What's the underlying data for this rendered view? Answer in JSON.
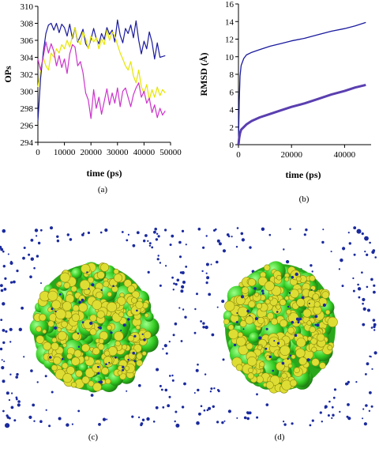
{
  "chart_data": [
    {
      "id": "a",
      "type": "line",
      "caption": "(a)",
      "xlabel": "time (ps)",
      "ylabel": "OPs",
      "xlim": [
        0,
        50000
      ],
      "ylim": [
        294,
        310
      ],
      "xticks": [
        0,
        10000,
        20000,
        30000,
        40000,
        50000
      ],
      "yticks": [
        294,
        296,
        298,
        300,
        302,
        304,
        306,
        308,
        310
      ],
      "grid": false,
      "series": [
        {
          "color": "#1a1a9e",
          "x": [
            0,
            1000,
            2000,
            3000,
            4000,
            5000,
            6000,
            7000,
            8000,
            9000,
            10000,
            11000,
            12000,
            13000,
            14000,
            15000,
            16000,
            17000,
            18000,
            19000,
            20000,
            21000,
            22000,
            23000,
            24000,
            25000,
            26000,
            27000,
            28000,
            29000,
            30000,
            31000,
            32000,
            33000,
            34000,
            35000,
            36000,
            37000,
            38000,
            39000,
            40000,
            41000,
            42000,
            43000,
            44000,
            45000,
            46000,
            47000,
            48000
          ],
          "y": [
            296.5,
            301.5,
            304.5,
            306.8,
            307.8,
            308.0,
            307.2,
            308.0,
            306.9,
            307.9,
            307.5,
            306.5,
            307.9,
            306.2,
            307.5,
            305.8,
            306.5,
            307.3,
            305.6,
            305.1,
            306.1,
            307.4,
            306.2,
            305.6,
            306.8,
            306.1,
            307.5,
            306.7,
            307.2,
            305.8,
            308.4,
            306.6,
            305.7,
            307.4,
            306.8,
            307.8,
            306.3,
            308.3,
            306.0,
            304.4,
            305.9,
            305.0,
            307.0,
            305.8,
            303.8,
            305.7,
            304.0,
            304.1,
            304.2
          ]
        },
        {
          "color": "#e6e600",
          "x": [
            0,
            1000,
            2000,
            3000,
            4000,
            5000,
            6000,
            7000,
            8000,
            9000,
            10000,
            11000,
            12000,
            13000,
            14000,
            15000,
            16000,
            17000,
            18000,
            19000,
            20000,
            21000,
            22000,
            23000,
            24000,
            25000,
            26000,
            27000,
            28000,
            29000,
            30000,
            31000,
            32000,
            33000,
            34000,
            35000,
            36000,
            37000,
            38000,
            39000,
            40000,
            41000,
            42000,
            43000,
            44000,
            45000,
            46000,
            47000,
            48000
          ],
          "y": [
            300.5,
            302.5,
            304.0,
            303.0,
            302.5,
            304.5,
            304.0,
            305.0,
            304.5,
            305.5,
            305.0,
            306.0,
            305.2,
            306.5,
            307.5,
            306.0,
            305.5,
            307.0,
            306.2,
            305.0,
            306.5,
            305.8,
            306.3,
            305.0,
            306.2,
            305.5,
            307.2,
            306.0,
            307.0,
            306.5,
            305.5,
            304.5,
            303.8,
            303.0,
            302.5,
            303.5,
            301.8,
            301.0,
            302.5,
            300.5,
            299.8,
            300.8,
            299.0,
            300.2,
            299.3,
            300.5,
            299.5,
            300.2,
            299.8
          ]
        },
        {
          "color": "#cc33cc",
          "x": [
            0,
            1000,
            2000,
            3000,
            4000,
            5000,
            6000,
            7000,
            8000,
            9000,
            10000,
            11000,
            12000,
            13000,
            14000,
            15000,
            16000,
            17000,
            18000,
            19000,
            20000,
            21000,
            22000,
            23000,
            24000,
            25000,
            26000,
            27000,
            28000,
            29000,
            30000,
            31000,
            32000,
            33000,
            34000,
            35000,
            36000,
            37000,
            38000,
            39000,
            40000,
            41000,
            42000,
            43000,
            44000,
            45000,
            46000,
            47000,
            48000
          ],
          "y": [
            303.8,
            302.5,
            304.0,
            305.8,
            304.5,
            305.6,
            304.7,
            303.0,
            304.2,
            302.8,
            303.8,
            302.1,
            304.4,
            305.5,
            305.2,
            303.0,
            303.5,
            302.2,
            299.8,
            299.0,
            296.8,
            300.2,
            298.0,
            299.3,
            297.3,
            298.8,
            300.3,
            298.4,
            299.8,
            298.6,
            300.4,
            298.2,
            300.0,
            300.4,
            299.3,
            298.2,
            299.6,
            300.4,
            301.0,
            299.3,
            300.0,
            298.6,
            299.2,
            297.5,
            298.4,
            296.9,
            298.0,
            297.2,
            297.7
          ]
        }
      ]
    },
    {
      "id": "b",
      "type": "line",
      "caption": "(b)",
      "xlabel": "time (ps)",
      "ylabel": "RMSD (Å)",
      "xlim": [
        0,
        50000
      ],
      "ylim": [
        0,
        16
      ],
      "xticks": [
        0,
        20000,
        40000
      ],
      "yticks": [
        0,
        2,
        4,
        6,
        8,
        10,
        12,
        14,
        16
      ],
      "grid": false,
      "series": [
        {
          "color": "#1a1a9e",
          "x": [
            0,
            300,
            600,
            1000,
            2000,
            3000,
            5000,
            8000,
            12000,
            16000,
            20000,
            25000,
            30000,
            35000,
            40000,
            44000,
            48000
          ],
          "y": [
            0,
            5.0,
            7.8,
            9.0,
            9.8,
            10.2,
            10.5,
            10.8,
            11.2,
            11.5,
            11.8,
            12.1,
            12.5,
            12.9,
            13.2,
            13.5,
            13.9
          ]
        },
        {
          "color": "#5a3fb0",
          "x": [
            0,
            300,
            600,
            1000,
            2000,
            3000,
            5000,
            8000,
            12000,
            16000,
            20000,
            25000,
            30000,
            35000,
            40000,
            44000,
            48000
          ],
          "y": [
            0,
            0.8,
            1.3,
            1.7,
            2.0,
            2.3,
            2.7,
            3.1,
            3.5,
            3.9,
            4.3,
            4.7,
            5.2,
            5.7,
            6.1,
            6.5,
            6.8
          ]
        }
      ]
    }
  ],
  "panels": {
    "c": {
      "caption": "(c)"
    },
    "d": {
      "caption": "(d)"
    }
  },
  "colors": {
    "green": "#33cc22",
    "yellow": "#dddd33",
    "dots": "#1a2a9e"
  }
}
